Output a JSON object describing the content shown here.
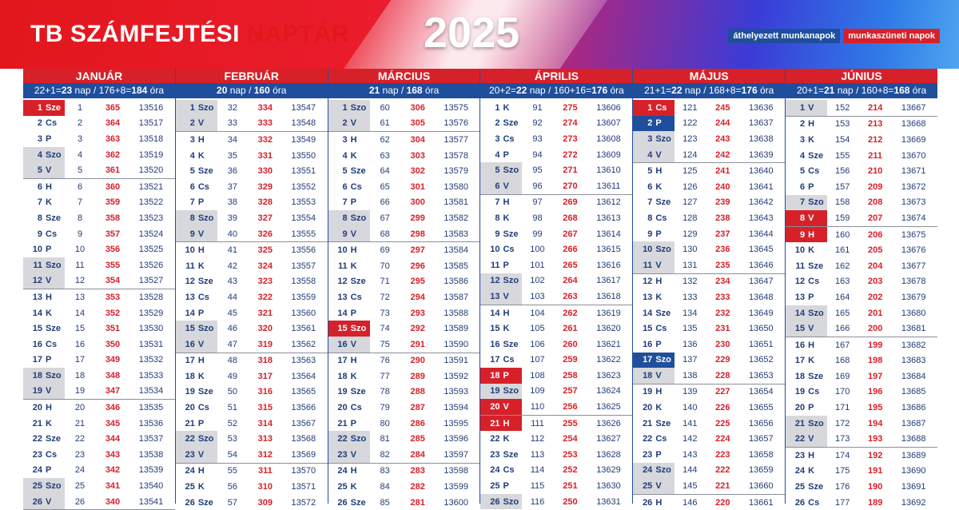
{
  "header": {
    "title_main": "TB SZÁMFEJTÉSI",
    "title_accent": "NAPTÁR",
    "year": "2025",
    "legend_moved": "áthelyezett munkanapok",
    "legend_holiday": "munkaszüneti napok"
  },
  "colors": {
    "holiday": "#d7212a",
    "moved": "#1f4e9c",
    "weekend": "#d7d8dc"
  },
  "months": [
    {
      "name": "JANUÁR",
      "summary": "22+1=<b>23</b> nap / 176+8=<b>184</b> óra",
      "start_yday": 1,
      "start_jd": 13516,
      "rows": [
        [
          "1",
          "Sze",
          "hol"
        ],
        [
          "2",
          "Cs",
          ""
        ],
        [
          "3",
          "P",
          ""
        ],
        [
          "4",
          "Szo",
          "we"
        ],
        [
          "5",
          "V",
          "we"
        ],
        [
          "6",
          "H",
          ""
        ],
        [
          "7",
          "K",
          ""
        ],
        [
          "8",
          "Sze",
          ""
        ],
        [
          "9",
          "Cs",
          ""
        ],
        [
          "10",
          "P",
          ""
        ],
        [
          "11",
          "Szo",
          "we"
        ],
        [
          "12",
          "V",
          "we"
        ],
        [
          "13",
          "H",
          ""
        ],
        [
          "14",
          "K",
          ""
        ],
        [
          "15",
          "Sze",
          ""
        ],
        [
          "16",
          "Cs",
          ""
        ],
        [
          "17",
          "P",
          ""
        ],
        [
          "18",
          "Szo",
          "we"
        ],
        [
          "19",
          "V",
          "we"
        ],
        [
          "20",
          "H",
          ""
        ],
        [
          "21",
          "K",
          ""
        ],
        [
          "22",
          "Sze",
          ""
        ],
        [
          "23",
          "Cs",
          ""
        ],
        [
          "24",
          "P",
          ""
        ],
        [
          "25",
          "Szo",
          "we"
        ],
        [
          "26",
          "V",
          "we"
        ]
      ]
    },
    {
      "name": "FEBRUÁR",
      "summary": "<b>20</b> nap / <b>160</b> óra",
      "start_yday": 32,
      "start_jd": 13547,
      "rows": [
        [
          "1",
          "Szo",
          "we"
        ],
        [
          "2",
          "V",
          "we"
        ],
        [
          "3",
          "H",
          ""
        ],
        [
          "4",
          "K",
          ""
        ],
        [
          "5",
          "Sze",
          ""
        ],
        [
          "6",
          "Cs",
          ""
        ],
        [
          "7",
          "P",
          ""
        ],
        [
          "8",
          "Szo",
          "we"
        ],
        [
          "9",
          "V",
          "we"
        ],
        [
          "10",
          "H",
          ""
        ],
        [
          "11",
          "K",
          ""
        ],
        [
          "12",
          "Sze",
          ""
        ],
        [
          "13",
          "Cs",
          ""
        ],
        [
          "14",
          "P",
          ""
        ],
        [
          "15",
          "Szo",
          "we"
        ],
        [
          "16",
          "V",
          "we"
        ],
        [
          "17",
          "H",
          ""
        ],
        [
          "18",
          "K",
          ""
        ],
        [
          "19",
          "Sze",
          ""
        ],
        [
          "20",
          "Cs",
          ""
        ],
        [
          "21",
          "P",
          ""
        ],
        [
          "22",
          "Szo",
          "we"
        ],
        [
          "23",
          "V",
          "we"
        ],
        [
          "24",
          "H",
          ""
        ],
        [
          "25",
          "K",
          ""
        ],
        [
          "26",
          "Sze",
          ""
        ]
      ]
    },
    {
      "name": "MÁRCIUS",
      "summary": "<b>21</b> nap / <b>168</b> óra",
      "start_yday": 60,
      "start_jd": 13575,
      "rows": [
        [
          "1",
          "Szo",
          "we"
        ],
        [
          "2",
          "V",
          "we"
        ],
        [
          "3",
          "H",
          ""
        ],
        [
          "4",
          "K",
          ""
        ],
        [
          "5",
          "Sze",
          ""
        ],
        [
          "6",
          "Cs",
          ""
        ],
        [
          "7",
          "P",
          ""
        ],
        [
          "8",
          "Szo",
          "we"
        ],
        [
          "9",
          "V",
          "we"
        ],
        [
          "10",
          "H",
          ""
        ],
        [
          "11",
          "K",
          ""
        ],
        [
          "12",
          "Sze",
          ""
        ],
        [
          "13",
          "Cs",
          ""
        ],
        [
          "14",
          "P",
          ""
        ],
        [
          "15",
          "Szo",
          "hol"
        ],
        [
          "16",
          "V",
          "we"
        ],
        [
          "17",
          "H",
          ""
        ],
        [
          "18",
          "K",
          ""
        ],
        [
          "19",
          "Sze",
          ""
        ],
        [
          "20",
          "Cs",
          ""
        ],
        [
          "21",
          "P",
          ""
        ],
        [
          "22",
          "Szo",
          "we"
        ],
        [
          "23",
          "V",
          "we"
        ],
        [
          "24",
          "H",
          ""
        ],
        [
          "25",
          "K",
          ""
        ],
        [
          "26",
          "Sze",
          ""
        ]
      ]
    },
    {
      "name": "ÁPRILIS",
      "summary": "20+2=<b>22</b> nap / 160+16=<b>176</b> óra",
      "start_yday": 91,
      "start_jd": 13606,
      "rows": [
        [
          "1",
          "K",
          ""
        ],
        [
          "2",
          "Sze",
          ""
        ],
        [
          "3",
          "Cs",
          ""
        ],
        [
          "4",
          "P",
          ""
        ],
        [
          "5",
          "Szo",
          "we"
        ],
        [
          "6",
          "V",
          "we"
        ],
        [
          "7",
          "H",
          ""
        ],
        [
          "8",
          "K",
          ""
        ],
        [
          "9",
          "Sze",
          ""
        ],
        [
          "10",
          "Cs",
          ""
        ],
        [
          "11",
          "P",
          ""
        ],
        [
          "12",
          "Szo",
          "we"
        ],
        [
          "13",
          "V",
          "we"
        ],
        [
          "14",
          "H",
          ""
        ],
        [
          "15",
          "K",
          ""
        ],
        [
          "16",
          "Sze",
          ""
        ],
        [
          "17",
          "Cs",
          ""
        ],
        [
          "18",
          "P",
          "hol"
        ],
        [
          "19",
          "Szo",
          "we"
        ],
        [
          "20",
          "V",
          "hol"
        ],
        [
          "21",
          "H",
          "hol"
        ],
        [
          "22",
          "K",
          ""
        ],
        [
          "23",
          "Sze",
          ""
        ],
        [
          "24",
          "Cs",
          ""
        ],
        [
          "25",
          "P",
          ""
        ],
        [
          "26",
          "Szo",
          "we"
        ]
      ]
    },
    {
      "name": "MÁJUS",
      "summary": "21+1=<b>22</b> nap / 168+8=<b>176</b> óra",
      "start_yday": 121,
      "start_jd": 13636,
      "rows": [
        [
          "1",
          "Cs",
          "hol"
        ],
        [
          "2",
          "P",
          "moved"
        ],
        [
          "3",
          "Szo",
          "we"
        ],
        [
          "4",
          "V",
          "we"
        ],
        [
          "5",
          "H",
          ""
        ],
        [
          "6",
          "K",
          ""
        ],
        [
          "7",
          "Sze",
          ""
        ],
        [
          "8",
          "Cs",
          ""
        ],
        [
          "9",
          "P",
          ""
        ],
        [
          "10",
          "Szo",
          "we"
        ],
        [
          "11",
          "V",
          "we"
        ],
        [
          "12",
          "H",
          ""
        ],
        [
          "13",
          "K",
          ""
        ],
        [
          "14",
          "Sze",
          ""
        ],
        [
          "15",
          "Cs",
          ""
        ],
        [
          "16",
          "P",
          ""
        ],
        [
          "17",
          "Szo",
          "moved"
        ],
        [
          "18",
          "V",
          "we"
        ],
        [
          "19",
          "H",
          ""
        ],
        [
          "20",
          "K",
          ""
        ],
        [
          "21",
          "Sze",
          ""
        ],
        [
          "22",
          "Cs",
          ""
        ],
        [
          "23",
          "P",
          ""
        ],
        [
          "24",
          "Szo",
          "we"
        ],
        [
          "25",
          "V",
          "we"
        ],
        [
          "26",
          "H",
          ""
        ]
      ]
    },
    {
      "name": "JÚNIUS",
      "summary": "20+1=<b>21</b> nap / 160+8=<b>168</b> óra",
      "start_yday": 152,
      "start_jd": 13667,
      "rows": [
        [
          "1",
          "V",
          "we"
        ],
        [
          "2",
          "H",
          ""
        ],
        [
          "3",
          "K",
          ""
        ],
        [
          "4",
          "Sze",
          ""
        ],
        [
          "5",
          "Cs",
          ""
        ],
        [
          "6",
          "P",
          ""
        ],
        [
          "7",
          "Szo",
          "we"
        ],
        [
          "8",
          "V",
          "hol"
        ],
        [
          "9",
          "H",
          "hol"
        ],
        [
          "10",
          "K",
          ""
        ],
        [
          "11",
          "Sze",
          ""
        ],
        [
          "12",
          "Cs",
          ""
        ],
        [
          "13",
          "P",
          ""
        ],
        [
          "14",
          "Szo",
          "we"
        ],
        [
          "15",
          "V",
          "we"
        ],
        [
          "16",
          "H",
          ""
        ],
        [
          "17",
          "K",
          ""
        ],
        [
          "18",
          "Sze",
          ""
        ],
        [
          "19",
          "Cs",
          ""
        ],
        [
          "20",
          "P",
          ""
        ],
        [
          "21",
          "Szo",
          "we"
        ],
        [
          "22",
          "V",
          "we"
        ],
        [
          "23",
          "H",
          ""
        ],
        [
          "24",
          "K",
          ""
        ],
        [
          "25",
          "Sze",
          ""
        ],
        [
          "26",
          "Cs",
          ""
        ]
      ]
    }
  ]
}
